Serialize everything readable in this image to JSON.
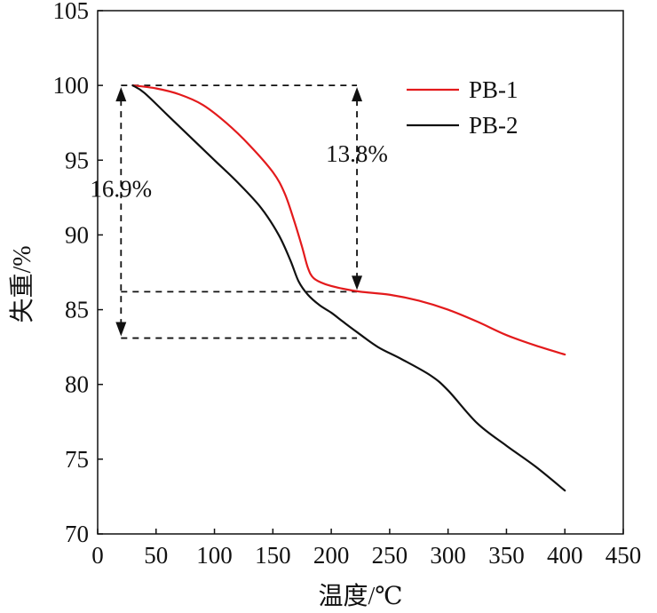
{
  "chart_data": {
    "type": "line",
    "title": "",
    "xlabel": "温度/℃",
    "ylabel": "失重/%",
    "xlim": [
      0,
      450
    ],
    "ylim": [
      70,
      105
    ],
    "xticks": [
      0,
      50,
      100,
      150,
      200,
      250,
      300,
      350,
      400,
      450
    ],
    "yticks": [
      70,
      75,
      80,
      85,
      90,
      95,
      100,
      105
    ],
    "grid": false,
    "legend_position": "top-right",
    "series": [
      {
        "name": "PB-1",
        "color": "#e31a1c",
        "x": [
          30,
          50,
          70,
          90,
          110,
          130,
          150,
          160,
          168,
          175,
          180,
          185,
          195,
          210,
          225,
          250,
          275,
          300,
          325,
          350,
          375,
          400
        ],
        "y": [
          100,
          99.8,
          99.4,
          98.7,
          97.5,
          96.0,
          94.2,
          92.8,
          91.0,
          89.2,
          87.8,
          87.1,
          86.7,
          86.4,
          86.2,
          86.0,
          85.6,
          85.0,
          84.2,
          83.3,
          82.6,
          82.0
        ]
      },
      {
        "name": "PB-2",
        "color": "#111111",
        "x": [
          30,
          40,
          60,
          80,
          100,
          120,
          140,
          155,
          165,
          172,
          180,
          190,
          200,
          210,
          222,
          240,
          260,
          285,
          300,
          325,
          350,
          375,
          400
        ],
        "y": [
          100,
          99.5,
          98.0,
          96.5,
          95.0,
          93.5,
          91.8,
          90.0,
          88.3,
          86.9,
          86.0,
          85.3,
          84.8,
          84.2,
          83.5,
          82.5,
          81.7,
          80.6,
          79.6,
          77.4,
          75.9,
          74.5,
          72.9
        ]
      }
    ],
    "annotations": [
      {
        "text": "16.9%",
        "x": 20,
        "y_from": 100,
        "y_to": 83.1
      },
      {
        "text": "13.8%",
        "x": 222,
        "y_from": 100,
        "y_to": 86.2
      }
    ],
    "reference_lines": [
      {
        "x_from": 20,
        "x_to": 222,
        "y": 100
      },
      {
        "x_from": 20,
        "x_to": 222,
        "y": 86.2
      },
      {
        "x_from": 20,
        "x_to": 222,
        "y": 83.1
      }
    ]
  }
}
